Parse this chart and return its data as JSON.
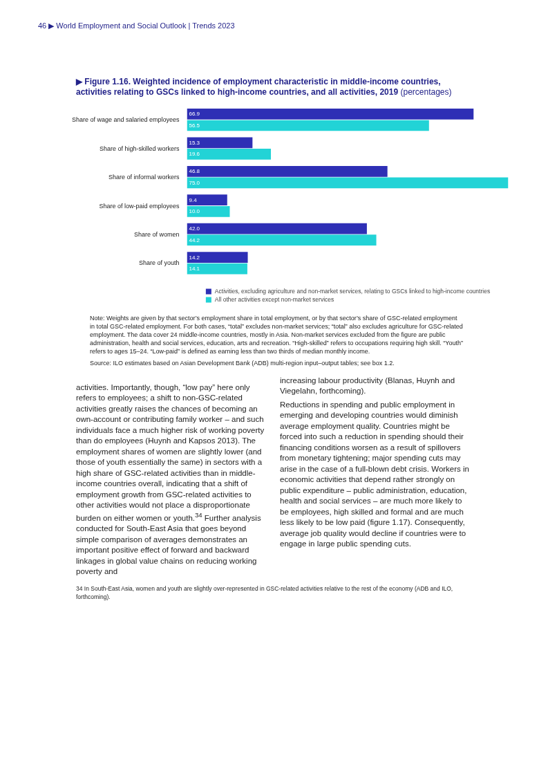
{
  "chart_data": {
    "type": "bar",
    "orientation": "horizontal",
    "title": "▶ Figure 1.16. Weighted incidence of employment characteristic in middle-income countries, activities relating to GSCs linked to high-income countries, and all activities, 2019",
    "subtitle": "(percentages)",
    "categories": [
      "Share of wage and salaried employees",
      "Share of high-skilled workers",
      "Share of informal workers",
      "Share of low-paid employees",
      "Share of women",
      "Share of youth"
    ],
    "series": [
      {
        "name": "Activities, excluding agriculture and non-market services, relating to GSCs linked to high-income countries",
        "color": "#2e2fb5",
        "values": [
          66.9,
          15.3,
          46.8,
          9.4,
          42.0,
          14.2
        ],
        "value_labels": [
          "66.9",
          "15.3",
          "46.8",
          "9.4",
          "42.0",
          "14.2"
        ]
      },
      {
        "name": "All other activities except non-market services",
        "color": "#22d3d6",
        "values": [
          56.5,
          19.6,
          75.0,
          10.0,
          44.2,
          14.1
        ],
        "value_labels": [
          "56.5",
          "19.6",
          "75.0",
          "10.0",
          "44.2",
          "14.1"
        ]
      }
    ],
    "legend": "bottom",
    "grid": false,
    "tick_labels": "y",
    "annotations": [
      "46 ▶ World Employment and Social Outlook | Trends 2023",
      "Note: Weights are given by that sector’s employment share in total employment, or by that sector’s share of GSC-related employment in total GSC-related employment. For both cases, “total” excludes non-market services; “total” also excludes agriculture for GSC-related employment. The data cover 24 middle-income countries, mostly in Asia. Non-market services excluded from the figure are public administration, health and social services, education, arts and recreation. “High-skilled” refers to occupations requiring high skill. “Youth” refers to ages 15–24. “Low-paid” is defined as earning less than two thirds of median monthly income.",
      "Source: ILO estimates based on Asian Development Bank (ADB) multi-region input–output tables; see box 1.2.",
      "activities. Importantly, though, “low pay” here only refers to employees; a shift to non-GSC-related activities greatly raises the chances of becoming an own-account or contributing family worker – and such individuals face a much higher risk of working poverty than do employees (Huynh and Kapsos 2013). The employment shares of women are slightly lower (and those of youth essentially the same) in sectors with a high share of GSC-related activities than in middle-income countries overall, indicating that a shift of employment growth from GSC-related activities to other activities would not place a disproportionate burden on either women or youth.$^{34}$ Further analysis conducted for South-East Asia that goes beyond simple comparison of averages demonstrates an important positive effect of forward and backward linkages in global value chains on reducing working poverty and",
      "increasing labour productivity (Blanas, Huynh and Viegelahn, forthcoming).",
      "Reductions in spending and public employment in emerging and developing countries would diminish average employment quality. Countries might be forced into such a reduction in spending should their financing conditions worsen as a result of spillovers from monetary tightening; major spending cuts may arise in the case of a full-blown debt crisis. Workers in economic activities that depend rather strongly on public expenditure – public administration, education, health and social services – are much more likely to be employees, high skilled and formal and are much less likely to be low paid (figure 1.17). Consequently, average job quality would decline if countries were to engage in large public spending cuts.",
      "34 In South-East Asia, women and youth are slightly over-represented in GSC-related activities relative to the rest of the economy (ADB and ILO, forthcoming)."
    ]
  }
}
